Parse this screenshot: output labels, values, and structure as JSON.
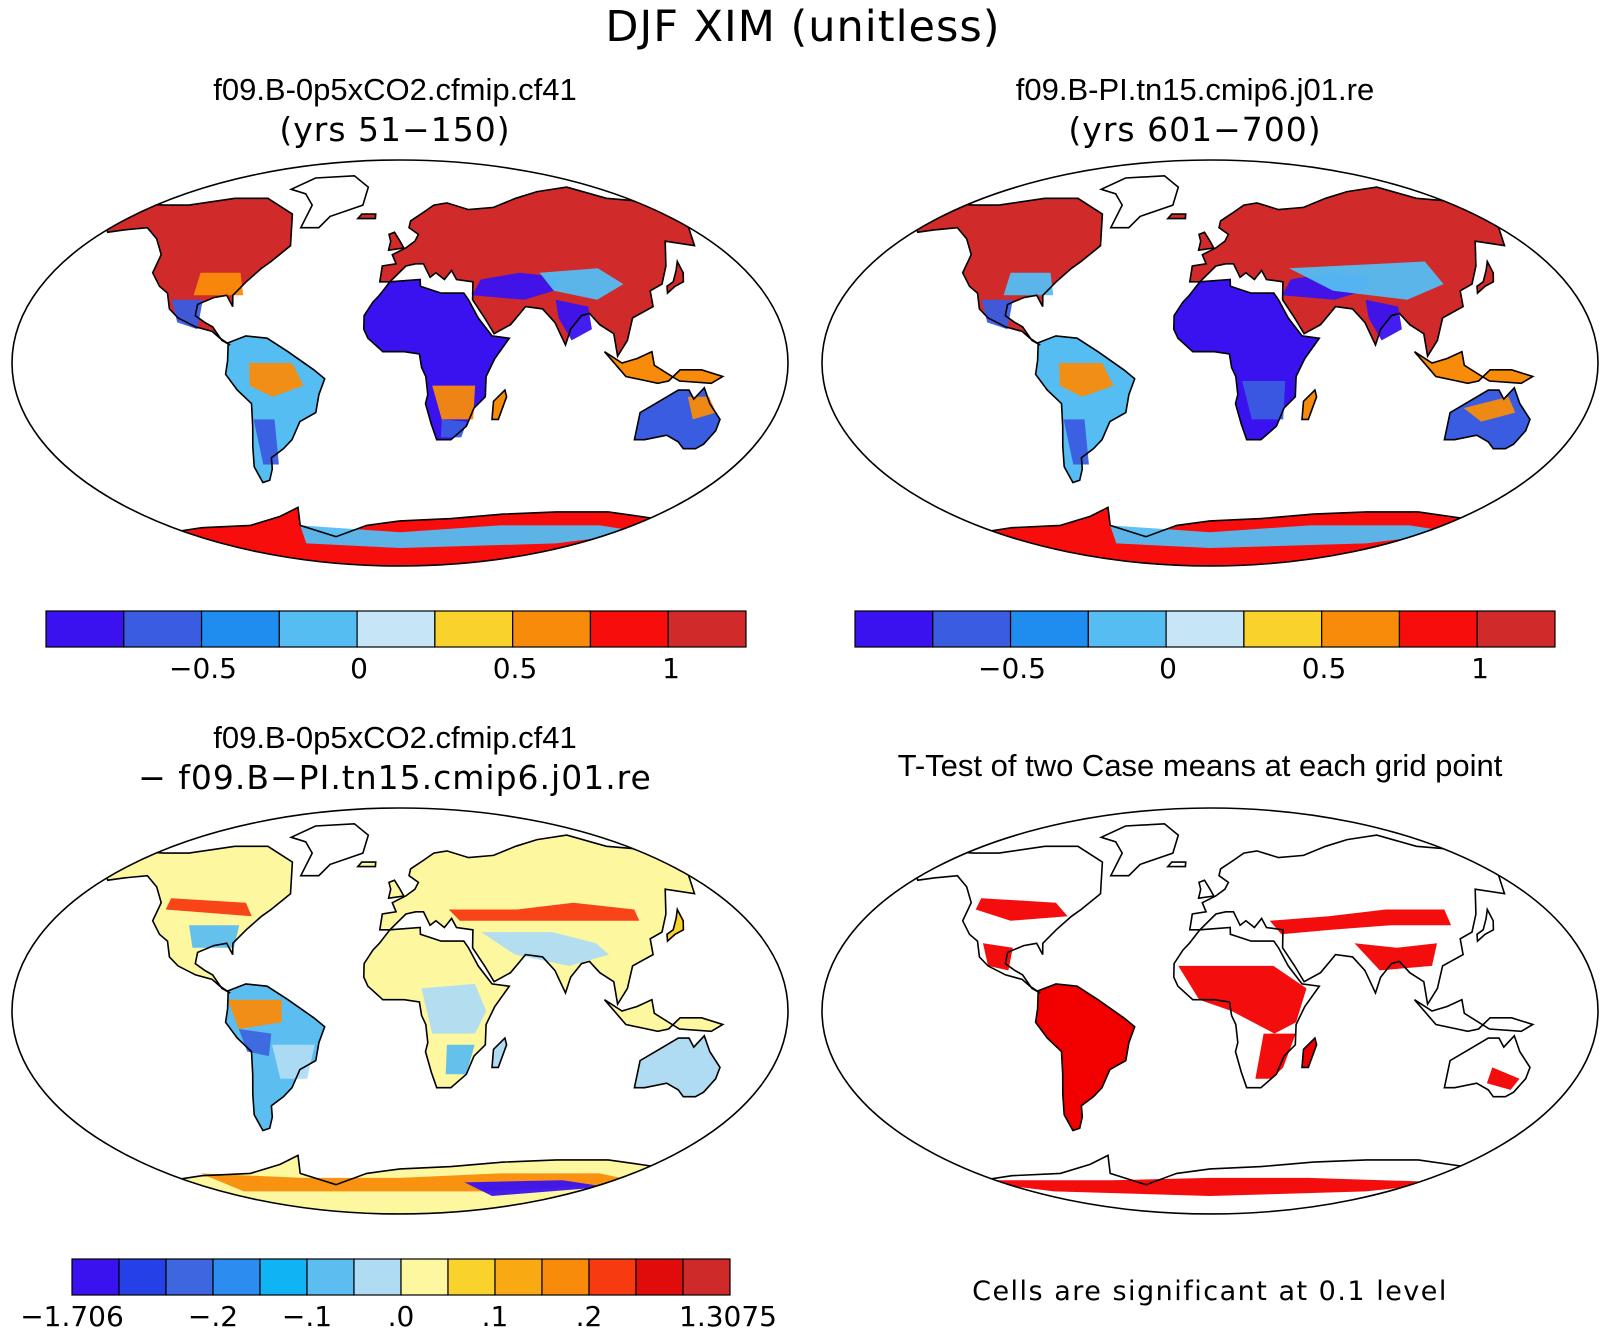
{
  "figure": {
    "title": "DJF XIM (unitless)"
  },
  "panels": [
    {
      "id": "case1",
      "title": "f09.B-0p5xCO2.cfmip.cf41",
      "subtitle": "(yrs 51−150)"
    },
    {
      "id": "case2",
      "title": "f09.B-PI.tn15.cmip6.j01.re",
      "subtitle": "(yrs 601−700)"
    },
    {
      "id": "diff",
      "title": "f09.B-0p5xCO2.cfmip.cf41",
      "subtitle": "− f09.B−PI.tn15.cmip6.j01.re"
    },
    {
      "id": "ttest",
      "title": "T-Test of two Case means at each grid point",
      "footnote": "Cells are significant at 0.1 level"
    }
  ],
  "colorbars": {
    "case": {
      "colors": [
        "#3a12f0",
        "#3a5ce0",
        "#1f8df0",
        "#55bdf2",
        "#c6e6f7",
        "#f9d22c",
        "#f98b0a",
        "#f80d0d",
        "#d02a2a"
      ],
      "labels": [
        "−0.5",
        "0",
        "0.5",
        "1"
      ]
    },
    "diff": {
      "colors": [
        "#3a12f0",
        "#2440e6",
        "#3d66df",
        "#2c8cf0",
        "#10b3f4",
        "#5cbef0",
        "#afdcf3",
        "#fdf7a0",
        "#f9d22c",
        "#f9aa12",
        "#f98b0a",
        "#f83a10",
        "#e00c0c",
        "#cf2a2a"
      ],
      "labels": [
        "−1.706",
        "−.2",
        "−.1",
        ".0",
        ".1",
        ".2",
        "1.3075"
      ]
    }
  },
  "map_colors": {
    "ocean": "#ffffff",
    "coastline": "#000000",
    "significant": "#f20000"
  }
}
